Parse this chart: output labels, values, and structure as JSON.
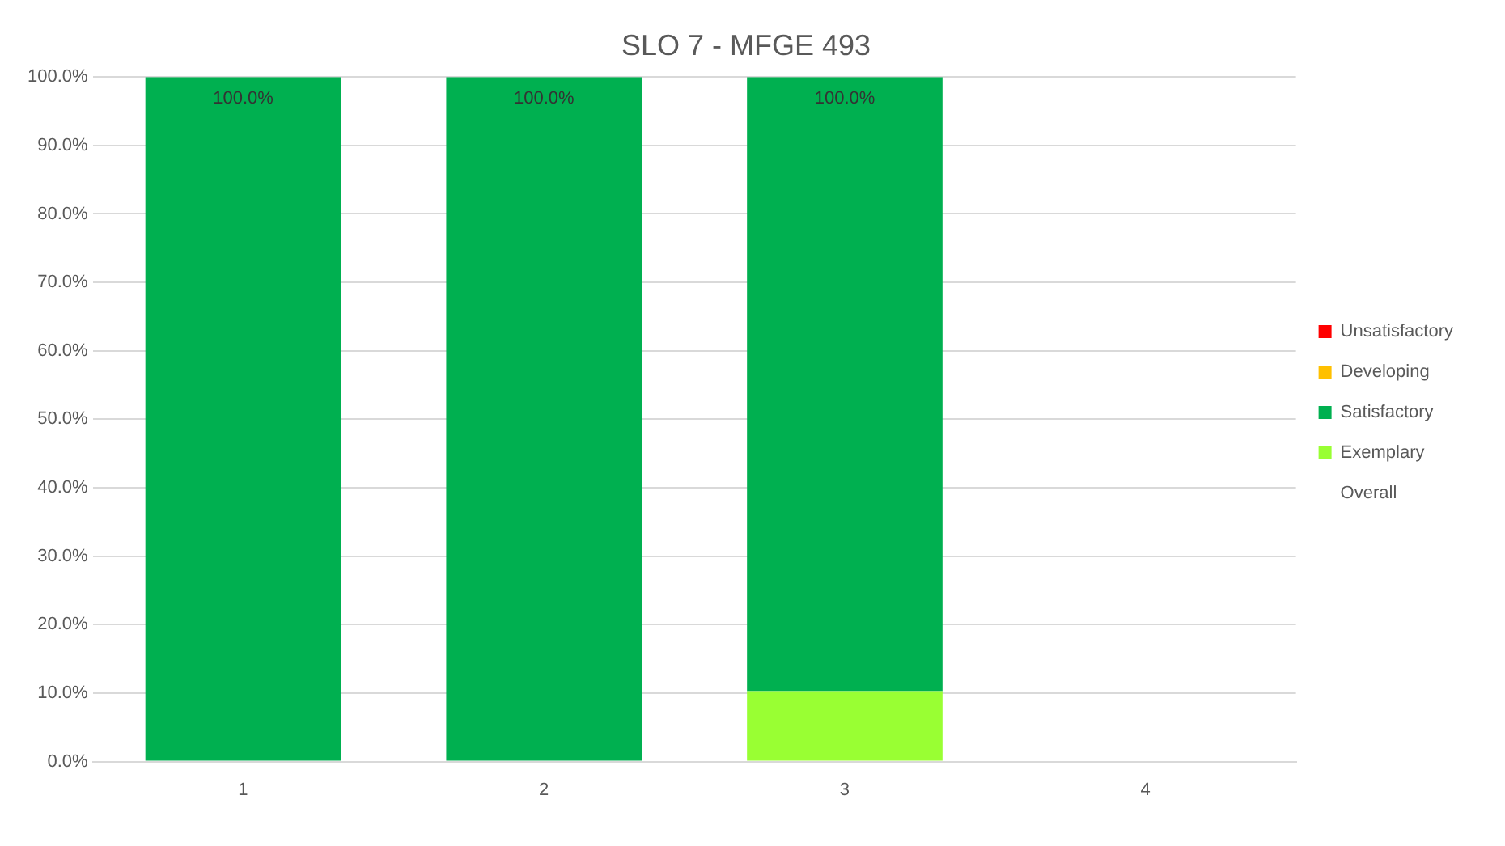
{
  "chart_data": {
    "type": "bar",
    "title": "SLO 7 - MFGE 493",
    "categories": [
      "1",
      "2",
      "3",
      "4"
    ],
    "stacked": true,
    "series": [
      {
        "name": "Overall",
        "values": [
          null,
          null,
          null,
          null
        ]
      },
      {
        "name": "Exemplary",
        "color": "#99ff33",
        "values": [
          null,
          null,
          10.3,
          null
        ]
      },
      {
        "name": "Satisfactory",
        "color": "#00b050",
        "values": [
          100,
          100,
          89.7,
          null
        ]
      },
      {
        "name": "Developing",
        "color": "#ffc000",
        "values": [
          null,
          null,
          null,
          null
        ]
      },
      {
        "name": "Unsatisfactory",
        "color": "#ff0000",
        "values": [
          null,
          null,
          null,
          null
        ]
      }
    ],
    "ylim": [
      0,
      100
    ],
    "yticks": [
      {
        "value": 0,
        "label": "0.0%"
      },
      {
        "value": 10,
        "label": "10.0%"
      },
      {
        "value": 20,
        "label": "20.0%"
      },
      {
        "value": 30,
        "label": "30.0%"
      },
      {
        "value": 40,
        "label": "40.0%"
      },
      {
        "value": 50,
        "label": "50.0%"
      },
      {
        "value": 60,
        "label": "60.0%"
      },
      {
        "value": 70,
        "label": "70.0%"
      },
      {
        "value": 80,
        "label": "80.0%"
      },
      {
        "value": 90,
        "label": "90.0%"
      },
      {
        "value": 100,
        "label": "100.0%"
      }
    ],
    "grid": "y",
    "legend": "right",
    "annotations": [
      {
        "text": "100.0%",
        "x": "1",
        "y": 100
      },
      {
        "text": "100.0%",
        "x": "2",
        "y": 100
      },
      {
        "text": "100.0%",
        "x": "3",
        "y": 100
      }
    ]
  }
}
